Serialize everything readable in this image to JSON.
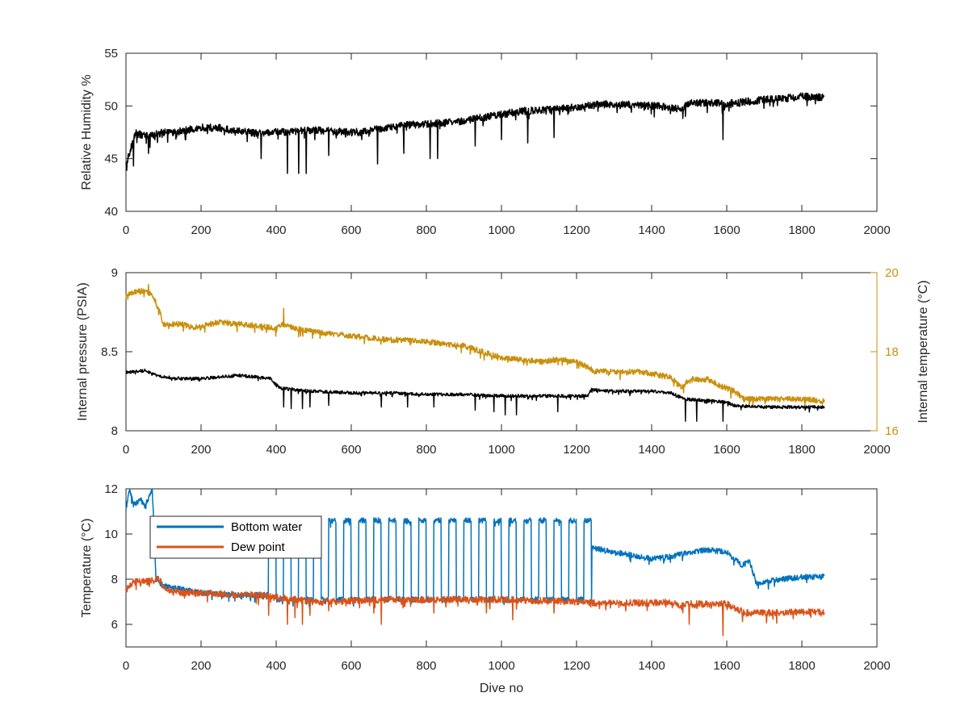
{
  "figure": {
    "background": "#ffffff",
    "axis_color": "#262626"
  },
  "chart_data": [
    {
      "type": "line",
      "xlabel": "",
      "ylabel": "Relative Humidity %",
      "xlim": [
        0,
        2000
      ],
      "ylim": [
        40,
        55
      ],
      "xticks": [
        0,
        200,
        400,
        600,
        800,
        1000,
        1200,
        1400,
        1600,
        1800,
        2000
      ],
      "yticks": [
        40,
        45,
        50,
        55
      ],
      "series": [
        {
          "color": "#000000",
          "x": [
            0,
            25,
            60,
            100,
            150,
            200,
            250,
            300,
            350,
            400,
            450,
            500,
            550,
            600,
            650,
            700,
            750,
            800,
            850,
            900,
            950,
            1000,
            1050,
            1100,
            1150,
            1200,
            1250,
            1300,
            1350,
            1400,
            1450,
            1480,
            1500,
            1550,
            1600,
            1650,
            1700,
            1750,
            1800,
            1860
          ],
          "y": [
            44.5,
            47.4,
            47.1,
            47.5,
            47.6,
            48.0,
            47.9,
            47.6,
            47.4,
            47.5,
            47.6,
            47.7,
            47.6,
            47.5,
            47.7,
            48.0,
            48.2,
            48.3,
            48.4,
            48.6,
            48.9,
            49.2,
            49.5,
            49.6,
            49.7,
            49.9,
            50.1,
            50.2,
            50.1,
            50.0,
            49.9,
            49.7,
            50.3,
            50.3,
            50.2,
            50.4,
            50.6,
            50.7,
            50.9,
            50.8
          ],
          "noise": 0.35,
          "spikes": [
            [
              20,
              44.3
            ],
            [
              60,
              45.5
            ],
            [
              360,
              45.0
            ],
            [
              430,
              43.6
            ],
            [
              460,
              43.6
            ],
            [
              480,
              43.6
            ],
            [
              540,
              45.3
            ],
            [
              670,
              44.5
            ],
            [
              740,
              45.5
            ],
            [
              810,
              45.0
            ],
            [
              830,
              45.0
            ],
            [
              930,
              46.2
            ],
            [
              1000,
              46.8
            ],
            [
              1070,
              46.5
            ],
            [
              1140,
              47.0
            ],
            [
              1490,
              49.0
            ],
            [
              1590,
              46.8
            ]
          ]
        }
      ]
    },
    {
      "type": "line",
      "xlabel": "",
      "ylabel": "Internal pressure (PSIA)",
      "ylabel_right": "Internal temperature (°C)",
      "xlim": [
        0,
        2000
      ],
      "ylim": [
        8,
        9
      ],
      "ylim_right": [
        16,
        20
      ],
      "xticks": [
        0,
        200,
        400,
        600,
        800,
        1000,
        1200,
        1400,
        1600,
        1800,
        2000
      ],
      "yticks": [
        "8",
        "8.5",
        "9"
      ],
      "yticks_right": [
        16,
        18,
        20
      ],
      "series": [
        {
          "axis": "right",
          "color": "#c9900c",
          "x": [
            0,
            20,
            50,
            70,
            90,
            100,
            150,
            180,
            200,
            250,
            300,
            350,
            400,
            420,
            450,
            500,
            550,
            600,
            650,
            700,
            750,
            800,
            850,
            900,
            950,
            1000,
            1050,
            1100,
            1150,
            1200,
            1250,
            1300,
            1350,
            1400,
            1450,
            1480,
            1500,
            1550,
            1580,
            1620,
            1650,
            1700,
            1750,
            1800,
            1860
          ],
          "y": [
            19.4,
            19.5,
            19.55,
            19.45,
            19.0,
            18.7,
            18.7,
            18.6,
            18.65,
            18.75,
            18.7,
            18.65,
            18.6,
            18.7,
            18.6,
            18.5,
            18.45,
            18.4,
            18.35,
            18.3,
            18.3,
            18.25,
            18.2,
            18.15,
            18.0,
            17.85,
            17.8,
            17.75,
            17.8,
            17.75,
            17.5,
            17.5,
            17.5,
            17.45,
            17.35,
            17.1,
            17.3,
            17.3,
            17.15,
            17.0,
            16.8,
            16.8,
            16.8,
            16.8,
            16.75
          ],
          "noise": 0.07,
          "spikes": [
            [
              60,
              19.7
            ],
            [
              420,
              19.1
            ],
            [
              1660,
              16.6
            ]
          ]
        },
        {
          "axis": "left",
          "color": "#000000",
          "x": [
            0,
            50,
            80,
            100,
            150,
            200,
            250,
            300,
            350,
            385,
            410,
            450,
            500,
            600,
            700,
            800,
            900,
            1000,
            1100,
            1200,
            1230,
            1240,
            1300,
            1400,
            1450,
            1470,
            1490,
            1550,
            1600,
            1620,
            1700,
            1800,
            1860
          ],
          "y": [
            8.37,
            8.38,
            8.35,
            8.34,
            8.33,
            8.33,
            8.34,
            8.35,
            8.34,
            8.33,
            8.27,
            8.26,
            8.25,
            8.24,
            8.24,
            8.23,
            8.23,
            8.22,
            8.22,
            8.22,
            8.22,
            8.26,
            8.25,
            8.25,
            8.24,
            8.22,
            8.2,
            8.19,
            8.18,
            8.16,
            8.15,
            8.15,
            8.15
          ],
          "noise": 0.01,
          "spikes": [
            [
              420,
              8.15
            ],
            [
              440,
              8.14
            ],
            [
              470,
              8.14
            ],
            [
              490,
              8.15
            ],
            [
              540,
              8.16
            ],
            [
              680,
              8.15
            ],
            [
              750,
              8.15
            ],
            [
              820,
              8.15
            ],
            [
              930,
              8.13
            ],
            [
              980,
              8.12
            ],
            [
              1010,
              8.1
            ],
            [
              1040,
              8.1
            ],
            [
              1150,
              8.12
            ],
            [
              1490,
              8.06
            ],
            [
              1520,
              8.06
            ],
            [
              1590,
              8.06
            ]
          ]
        }
      ]
    },
    {
      "type": "line",
      "xlabel": "Dive no",
      "ylabel": "Temperature (°C)",
      "xlim": [
        0,
        2000
      ],
      "ylim": [
        5,
        12
      ],
      "xticks": [
        0,
        200,
        400,
        600,
        800,
        1000,
        1200,
        1400,
        1600,
        1800,
        2000
      ],
      "yticks": [
        6,
        8,
        10,
        12
      ],
      "legend": {
        "location": "top-left",
        "entries": [
          "Bottom water",
          "Dew point"
        ]
      },
      "series": [
        {
          "name": "Bottom water",
          "color": "#0072bd",
          "x": [
            0,
            10,
            20,
            40,
            50,
            60,
            70,
            80,
            100,
            200,
            300,
            380
          ],
          "y": [
            11.1,
            12.0,
            11.3,
            11.5,
            11.2,
            11.6,
            12.0,
            8.0,
            7.7,
            7.4,
            7.3,
            7.3
          ],
          "oscillation": {
            "from": 380,
            "to": 1240,
            "low": 7.1,
            "high": 10.6,
            "period": 40
          },
          "tail_x": [
            1240,
            1300,
            1400,
            1450,
            1500,
            1550,
            1600,
            1640,
            1660,
            1680,
            1700,
            1750,
            1800,
            1860
          ],
          "tail_y": [
            9.4,
            9.2,
            8.9,
            9.0,
            9.2,
            9.3,
            9.2,
            8.6,
            8.8,
            7.8,
            7.9,
            8.0,
            8.1,
            8.1
          ],
          "noise": 0.12
        },
        {
          "name": "Dew point",
          "color": "#d95319",
          "x": [
            0,
            20,
            60,
            90,
            100,
            150,
            200,
            250,
            300,
            350,
            400,
            450,
            500,
            550,
            600,
            700,
            800,
            900,
            1000,
            1100,
            1200,
            1250,
            1300,
            1400,
            1450,
            1480,
            1500,
            1600,
            1650,
            1700,
            1800,
            1860
          ],
          "y": [
            7.5,
            7.9,
            7.9,
            8.0,
            7.6,
            7.4,
            7.4,
            7.35,
            7.3,
            7.3,
            7.2,
            7.1,
            7.0,
            7.0,
            7.05,
            7.1,
            7.1,
            7.1,
            7.1,
            7.05,
            7.0,
            6.95,
            6.95,
            6.95,
            7.0,
            6.8,
            6.9,
            6.9,
            6.5,
            6.5,
            6.55,
            6.55
          ],
          "noise": 0.15,
          "spikes": [
            [
              380,
              6.4
            ],
            [
              430,
              6.0
            ],
            [
              450,
              6.3
            ],
            [
              470,
              6.0
            ],
            [
              490,
              6.4
            ],
            [
              540,
              6.6
            ],
            [
              660,
              6.5
            ],
            [
              680,
              6.0
            ],
            [
              740,
              6.8
            ],
            [
              820,
              6.5
            ],
            [
              960,
              6.5
            ],
            [
              1030,
              6.2
            ],
            [
              1140,
              6.5
            ],
            [
              1500,
              6.0
            ],
            [
              1590,
              5.5
            ]
          ]
        }
      ]
    }
  ]
}
